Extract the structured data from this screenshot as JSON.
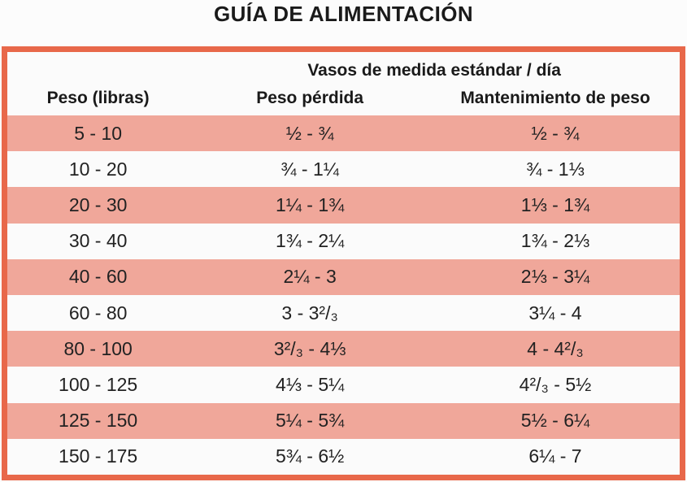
{
  "title": "GUÍA DE ALIMENTACIÓN",
  "chart_data": {
    "type": "table",
    "title": "GUÍA DE ALIMENTACIÓN",
    "span_header": "Vasos de medida estándar / día",
    "columns": [
      "Peso (libras)",
      "Peso pérdida",
      "Mantenimiento de peso"
    ],
    "rows": [
      [
        "5 - 10",
        "½ - ¾",
        "½ - ¾"
      ],
      [
        "10 - 20",
        "¾ - 1¼",
        "¾ - 1⅓"
      ],
      [
        "20 - 30",
        "1¼ - 1¾",
        "1⅓ - 1¾"
      ],
      [
        "30 - 40",
        "1¾ - 2¼",
        "1¾ - 2⅓"
      ],
      [
        "40 - 60",
        "2¼ - 3",
        "2⅓ - 3¼"
      ],
      [
        "60 - 80",
        "3 - 3²/₃",
        "3¼ - 4"
      ],
      [
        "80 - 100",
        "3²/₃ - 4⅓",
        "4 - 4²/₃"
      ],
      [
        "100 - 125",
        "4⅓ - 5¼",
        "4²/₃ - 5½"
      ],
      [
        "125 - 150",
        "5¼ - 5¾",
        "5½ - 6¼"
      ],
      [
        "150 - 175",
        "5¾ - 6½",
        "6¼ - 7"
      ]
    ]
  },
  "colors": {
    "border": "#E8684A",
    "row_pink": "#F0A79A",
    "row_white": "#FBFBFB",
    "text": "#1E1E1E"
  }
}
